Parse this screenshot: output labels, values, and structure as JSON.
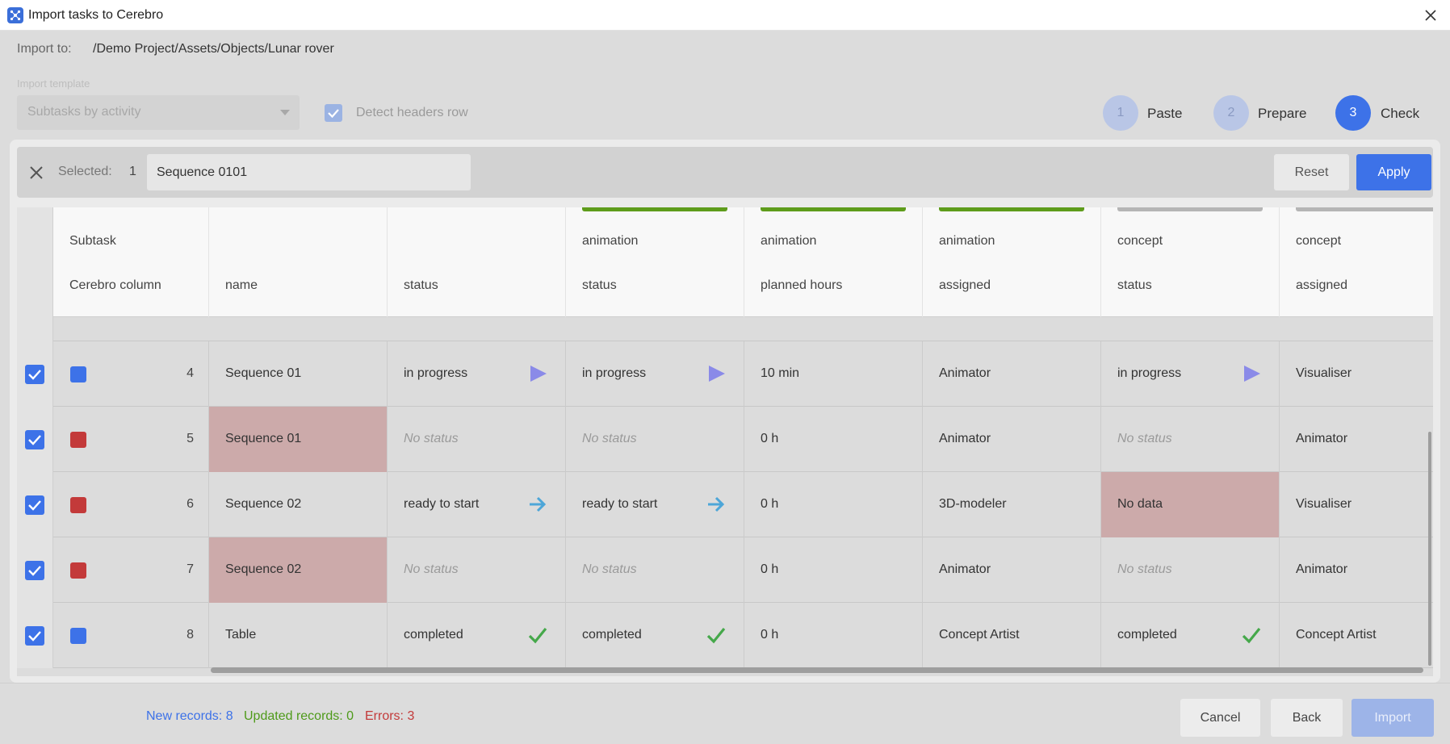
{
  "window": {
    "title": "Import tasks to Cerebro",
    "icon": "cerebro-app-icon"
  },
  "import_to": {
    "label": "Import to:",
    "path": "/Demo Project/Assets/Objects/Lunar rover"
  },
  "template": {
    "label": "Import template",
    "value": "Subtasks by activity"
  },
  "detect_headers": {
    "label": "Detect headers row",
    "checked": true
  },
  "steps": [
    {
      "number": "1",
      "label": "Paste",
      "active": false
    },
    {
      "number": "2",
      "label": "Prepare",
      "active": false
    },
    {
      "number": "3",
      "label": "Check",
      "active": true
    }
  ],
  "selection": {
    "label": "Selected:",
    "count": "1",
    "value": "Sequence 0101",
    "reset_label": "Reset",
    "apply_label": "Apply"
  },
  "header": {
    "row1_label": "Subtask",
    "row2_label": "Cerebro column",
    "columns": [
      {
        "top": "",
        "bottom": "name",
        "bar": ""
      },
      {
        "top": "",
        "bottom": "status",
        "bar": ""
      },
      {
        "top": "animation",
        "bottom": "status",
        "bar": "#5e9c1b"
      },
      {
        "top": "animation",
        "bottom": "planned hours",
        "bar": "#5e9c1b"
      },
      {
        "top": "animation",
        "bottom": "assigned",
        "bar": "#5e9c1b"
      },
      {
        "top": "concept",
        "bottom": "status",
        "bar": "#b5b5b5"
      },
      {
        "top": "concept",
        "bottom": "assigned",
        "bar": "#b5b5b5"
      }
    ]
  },
  "rows": [
    {
      "index": "4",
      "marker": "blue",
      "checked": true,
      "cells": [
        {
          "text": "Sequence 01"
        },
        {
          "text": "in progress",
          "icon": "play"
        },
        {
          "text": "in progress",
          "icon": "play"
        },
        {
          "text": "10 min"
        },
        {
          "text": "Animator"
        },
        {
          "text": "in progress",
          "icon": "play"
        },
        {
          "text": "Visualiser"
        }
      ]
    },
    {
      "index": "5",
      "marker": "red",
      "checked": true,
      "cells": [
        {
          "text": "Sequence 01",
          "error": true
        },
        {
          "text": "No status",
          "placeholder": true
        },
        {
          "text": "No status",
          "placeholder": true
        },
        {
          "text": "0 h"
        },
        {
          "text": "Animator"
        },
        {
          "text": "No status",
          "placeholder": true
        },
        {
          "text": "Animator"
        }
      ]
    },
    {
      "index": "6",
      "marker": "red",
      "checked": true,
      "cells": [
        {
          "text": "Sequence 02"
        },
        {
          "text": "ready to start",
          "icon": "arrow"
        },
        {
          "text": "ready to start",
          "icon": "arrow"
        },
        {
          "text": "0 h"
        },
        {
          "text": "3D-modeler"
        },
        {
          "text": "No data",
          "error": true
        },
        {
          "text": "Visualiser"
        }
      ]
    },
    {
      "index": "7",
      "marker": "red",
      "checked": true,
      "cells": [
        {
          "text": "Sequence 02",
          "error": true
        },
        {
          "text": "No status",
          "placeholder": true
        },
        {
          "text": "No status",
          "placeholder": true
        },
        {
          "text": "0 h"
        },
        {
          "text": "Animator"
        },
        {
          "text": "No status",
          "placeholder": true
        },
        {
          "text": "Animator"
        }
      ]
    },
    {
      "index": "8",
      "marker": "blue",
      "checked": true,
      "cells": [
        {
          "text": "Table"
        },
        {
          "text": "completed",
          "icon": "check"
        },
        {
          "text": "completed",
          "icon": "check"
        },
        {
          "text": "0 h"
        },
        {
          "text": "Concept Artist"
        },
        {
          "text": "completed",
          "icon": "check"
        },
        {
          "text": "Concept Artist"
        }
      ]
    }
  ],
  "footer": {
    "new_records": "New records: 8",
    "updated_records": "Updated records: 0",
    "errors": "Errors: 3",
    "cancel_label": "Cancel",
    "back_label": "Back",
    "import_label": "Import"
  },
  "colors": {
    "accent": "#3d72e8",
    "new": "#3d72e8",
    "updated": "#4e9a1a",
    "error": "#c33a3a",
    "status_play": "#8a8ae8",
    "status_arrow": "#4da6d8",
    "status_check": "#45a84a"
  }
}
